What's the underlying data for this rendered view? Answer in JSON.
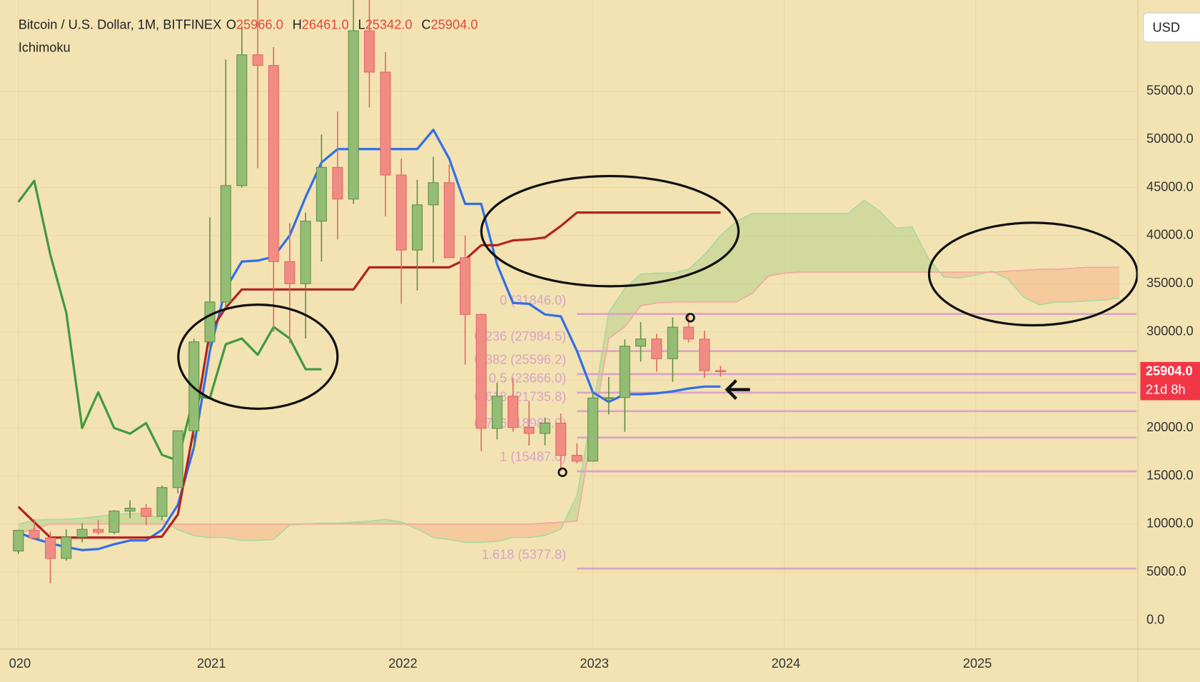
{
  "chart_data": {
    "type": "candlestick",
    "title": "Bitcoin / U.S. Dollar, 1M, BITFINEX",
    "ohlc_legend": [
      {
        "key": "O",
        "value": "25966.0"
      },
      {
        "key": "H",
        "value": "26461.0"
      },
      {
        "key": "L",
        "value": "25342.0"
      },
      {
        "key": "C",
        "value": "25904.0"
      }
    ],
    "indicator": "Ichimoku",
    "currency": "USD",
    "last_price": {
      "value": 25904,
      "label": "25904.0",
      "countdown": "21d 8h",
      "color": "#f23645"
    },
    "ylim": [
      -3000,
      64500
    ],
    "yticks": [
      {
        "value": 0,
        "label": "0.0"
      },
      {
        "value": 5000,
        "label": "5000.0"
      },
      {
        "value": 10000,
        "label": "10000.0"
      },
      {
        "value": 15000,
        "label": "15000.0"
      },
      {
        "value": 20000,
        "label": "20000.0"
      },
      {
        "value": 25000,
        "label": "25000.0"
      },
      {
        "value": 30000,
        "label": "30000.0"
      },
      {
        "value": 35000,
        "label": "35000.0"
      },
      {
        "value": 40000,
        "label": "40000.0"
      },
      {
        "value": 45000,
        "label": "45000.0"
      },
      {
        "value": 50000,
        "label": "50000.0"
      },
      {
        "value": 55000,
        "label": "55000.0"
      }
    ],
    "xlim": [
      2019.952,
      2025.847
    ],
    "xticks": [
      {
        "value": 2020,
        "label": "020"
      },
      2021,
      2022,
      2023,
      2024,
      2025
    ],
    "grid": true,
    "candles": {
      "up_color": "#93bd74",
      "down_color": "#f08c84",
      "x": [
        2020,
        2020.083,
        2020.167,
        2020.25,
        2020.333,
        2020.417,
        2020.5,
        2020.583,
        2020.667,
        2020.75,
        2020.833,
        2020.917,
        2021,
        2021.083,
        2021.167,
        2021.25,
        2021.333,
        2021.417,
        2021.5,
        2021.583,
        2021.667,
        2021.75,
        2021.833,
        2021.917,
        2022,
        2022.083,
        2022.167,
        2022.25,
        2022.333,
        2022.417,
        2022.5,
        2022.583,
        2022.667,
        2022.75,
        2022.833,
        2022.917,
        2023,
        2023.083,
        2023.167,
        2023.25,
        2023.333,
        2023.417,
        2023.5,
        2023.583,
        2023.667
      ],
      "open": [
        7200,
        9350,
        8550,
        6430,
        8650,
        9450,
        9150,
        11350,
        11650,
        10800,
        13800,
        19700,
        28950,
        33100,
        45200,
        58800,
        57700,
        37300,
        35000,
        41500,
        47100,
        43800,
        61300,
        57000,
        46300,
        38500,
        43200,
        45500,
        37700,
        31800,
        19950,
        23300,
        20050,
        19430,
        20500,
        17150,
        16550,
        23100,
        23150,
        28500,
        29250,
        27200,
        30480,
        29240,
        25966
      ],
      "high": [
        9400,
        10500,
        9200,
        9450,
        10100,
        10400,
        11450,
        12480,
        12100,
        14000,
        19500,
        29300,
        41900,
        58300,
        61800,
        64900,
        59600,
        41300,
        42400,
        50500,
        52900,
        67000,
        69000,
        59100,
        48000,
        45800,
        48200,
        47400,
        40000,
        31900,
        24700,
        25200,
        22800,
        21100,
        21500,
        18400,
        23900,
        25300,
        29200,
        31000,
        29800,
        31500,
        31800,
        30100,
        26461
      ],
      "low": [
        6900,
        8450,
        3850,
        6200,
        8100,
        8900,
        8950,
        10600,
        9900,
        10400,
        13200,
        17600,
        28100,
        32300,
        45000,
        47000,
        30000,
        28800,
        29300,
        37300,
        39600,
        43300,
        53300,
        42000,
        32900,
        34300,
        37200,
        37700,
        26600,
        17600,
        18800,
        19600,
        18150,
        18200,
        15500,
        16300,
        16500,
        21400,
        19600,
        26900,
        25850,
        24800,
        28900,
        25200,
        25342
      ],
      "close": [
        9350,
        8550,
        6430,
        8650,
        9450,
        9150,
        11350,
        11650,
        10800,
        13800,
        19700,
        28950,
        33100,
        45200,
        58800,
        57700,
        37300,
        35000,
        41500,
        47100,
        43800,
        61300,
        57000,
        46300,
        38500,
        43200,
        45500,
        37700,
        31800,
        19950,
        23300,
        20050,
        19430,
        20500,
        17150,
        16550,
        23100,
        23150,
        28500,
        29250,
        27200,
        30480,
        29240,
        25950,
        25904
      ]
    },
    "x": [
      2020,
      2020.083,
      2020.167,
      2020.25,
      2020.333,
      2020.417,
      2020.5,
      2020.583,
      2020.667,
      2020.75,
      2020.833,
      2020.917,
      2021,
      2021.083,
      2021.167,
      2021.25,
      2021.333,
      2021.417,
      2021.5,
      2021.583,
      2021.667,
      2021.75,
      2021.833,
      2021.917,
      2022,
      2022.083,
      2022.167,
      2022.25,
      2022.333,
      2022.417,
      2022.5,
      2022.583,
      2022.667,
      2022.75,
      2022.833,
      2022.917,
      2023,
      2023.083,
      2023.167,
      2023.25,
      2023.333,
      2023.417,
      2023.5,
      2023.583,
      2023.667,
      2023.75,
      2023.833,
      2023.917,
      2024,
      2024.083,
      2024.167,
      2024.25,
      2024.333,
      2024.417,
      2024.5,
      2024.583,
      2024.667,
      2024.75,
      2024.833,
      2024.917,
      2025,
      2025.083,
      2025.167,
      2025.25,
      2025.333,
      2025.417,
      2025.5,
      2025.583,
      2025.667,
      2025.75
    ],
    "series": [
      {
        "role": "line",
        "color": "#2f6fe8",
        "values": [
          9100,
          8500,
          8000,
          7600,
          7300,
          7400,
          7900,
          8300,
          8300,
          9400,
          12000,
          18000,
          28000,
          34500,
          37300,
          37400,
          37800,
          40000,
          44000,
          47600,
          49000,
          49000,
          49000,
          49000,
          49000,
          49000,
          51000,
          48000,
          43300,
          43300,
          37000,
          33000,
          32900,
          31800,
          31600,
          28000,
          23700,
          22700,
          23500,
          23500,
          23600,
          23800,
          24100,
          24300,
          24300,
          null,
          null,
          null,
          null,
          null,
          null,
          null,
          null,
          null,
          null,
          null,
          null,
          null,
          null,
          null,
          null,
          null,
          null,
          null,
          null,
          null,
          null,
          null,
          null,
          null
        ]
      },
      {
        "role": "line",
        "color": "#b22222",
        "values": [
          11800,
          10200,
          8600,
          8600,
          8600,
          8600,
          8600,
          8600,
          8600,
          8700,
          11000,
          20000,
          30000,
          32500,
          34400,
          34400,
          34400,
          34400,
          34400,
          34400,
          34400,
          34400,
          36700,
          36700,
          36700,
          36700,
          36700,
          36700,
          37500,
          39000,
          39000,
          39500,
          39600,
          39800,
          41000,
          42400,
          42400,
          42400,
          42400,
          42400,
          42400,
          42400,
          42400,
          42400,
          42400,
          null,
          null,
          null,
          null,
          null,
          null,
          null,
          null,
          null,
          null,
          null,
          null,
          null,
          null,
          null,
          null,
          null,
          null,
          null,
          null,
          null,
          null,
          null,
          null,
          null
        ]
      },
      {
        "role": "line",
        "color": "#3f9a3f",
        "values": [
          43500,
          45700,
          38000,
          32000,
          20000,
          23700,
          20000,
          19400,
          20500,
          17200,
          16600,
          23300,
          23100,
          28700,
          29300,
          27600,
          30500,
          29300,
          26100,
          26100,
          null,
          null,
          null,
          null,
          null,
          null,
          null,
          null,
          null,
          null,
          null,
          null,
          null,
          null,
          null,
          null,
          null,
          null,
          null,
          null,
          null,
          null,
          null,
          null,
          null,
          null,
          null,
          null,
          null,
          null,
          null,
          null,
          null,
          null,
          null,
          null,
          null,
          null,
          null,
          null,
          null,
          null,
          null,
          null,
          null,
          null,
          null,
          null,
          null,
          null
        ]
      },
      {
        "role": "span_a",
        "color": "#a8d8a0",
        "values": [
          10000,
          10400,
          10500,
          10500,
          10600,
          10800,
          11000,
          11100,
          11100,
          10500,
          9400,
          8800,
          8600,
          8600,
          8300,
          8300,
          8400,
          9900,
          10000,
          10100,
          10100,
          10200,
          10300,
          10500,
          10200,
          9500,
          8600,
          8400,
          8100,
          8100,
          8200,
          8600,
          8600,
          8800,
          9500,
          13000,
          22000,
          32000,
          34500,
          36000,
          36100,
          36100,
          36500,
          38000,
          40000,
          41500,
          42300,
          42300,
          42300,
          42300,
          42300,
          42300,
          42300,
          43700,
          42500,
          40800,
          40900,
          37700,
          35700,
          35600,
          35900,
          36300,
          35500,
          33600,
          32800,
          33100,
          33100,
          33200,
          33300,
          33500
        ]
      },
      {
        "role": "span_b",
        "color": "#f2a8a0",
        "values": [
          9000,
          9500,
          10000,
          10000,
          10000,
          10000,
          10000,
          10000,
          10000,
          10000,
          10000,
          10000,
          10000,
          10000,
          10000,
          10000,
          10000,
          10000,
          10000,
          10000,
          10000,
          10000,
          10000,
          10000,
          10000,
          10000,
          10000,
          10000,
          10000,
          10000,
          10000,
          10000,
          10000,
          10100,
          10200,
          10300,
          20000,
          29300,
          30500,
          32700,
          33000,
          33100,
          33100,
          33100,
          33100,
          33100,
          34000,
          35800,
          36100,
          36200,
          36200,
          36200,
          36200,
          36200,
          36200,
          36200,
          36200,
          36200,
          36200,
          36200,
          36200,
          36200,
          36300,
          36400,
          36500,
          36500,
          36600,
          36700,
          36700,
          36700
        ]
      }
    ],
    "cloud_colors": {
      "bull": "rgba(170,205,130,0.45)",
      "bear": "rgba(248,170,130,0.45)"
    },
    "fib": {
      "color": "#d9a3c6",
      "x_start": 2022.917,
      "levels": [
        {
          "label": "0 (31846.0)",
          "price": 31846
        },
        {
          "label": "0.236 (27984.5)",
          "price": 27984.5
        },
        {
          "label": "0.382 (25596.2)",
          "price": 25596.2
        },
        {
          "label": "0.5 (23666.0)",
          "price": 23666
        },
        {
          "label": "0.618 (21735.8)",
          "price": 21735.8
        },
        {
          "label": "0.786 (18988.0)",
          "price": 18988
        },
        {
          "label": "1 (15487.0)",
          "price": 15487
        },
        {
          "label": "1.618 (5377.8)",
          "price": 5377.8
        }
      ]
    }
  }
}
